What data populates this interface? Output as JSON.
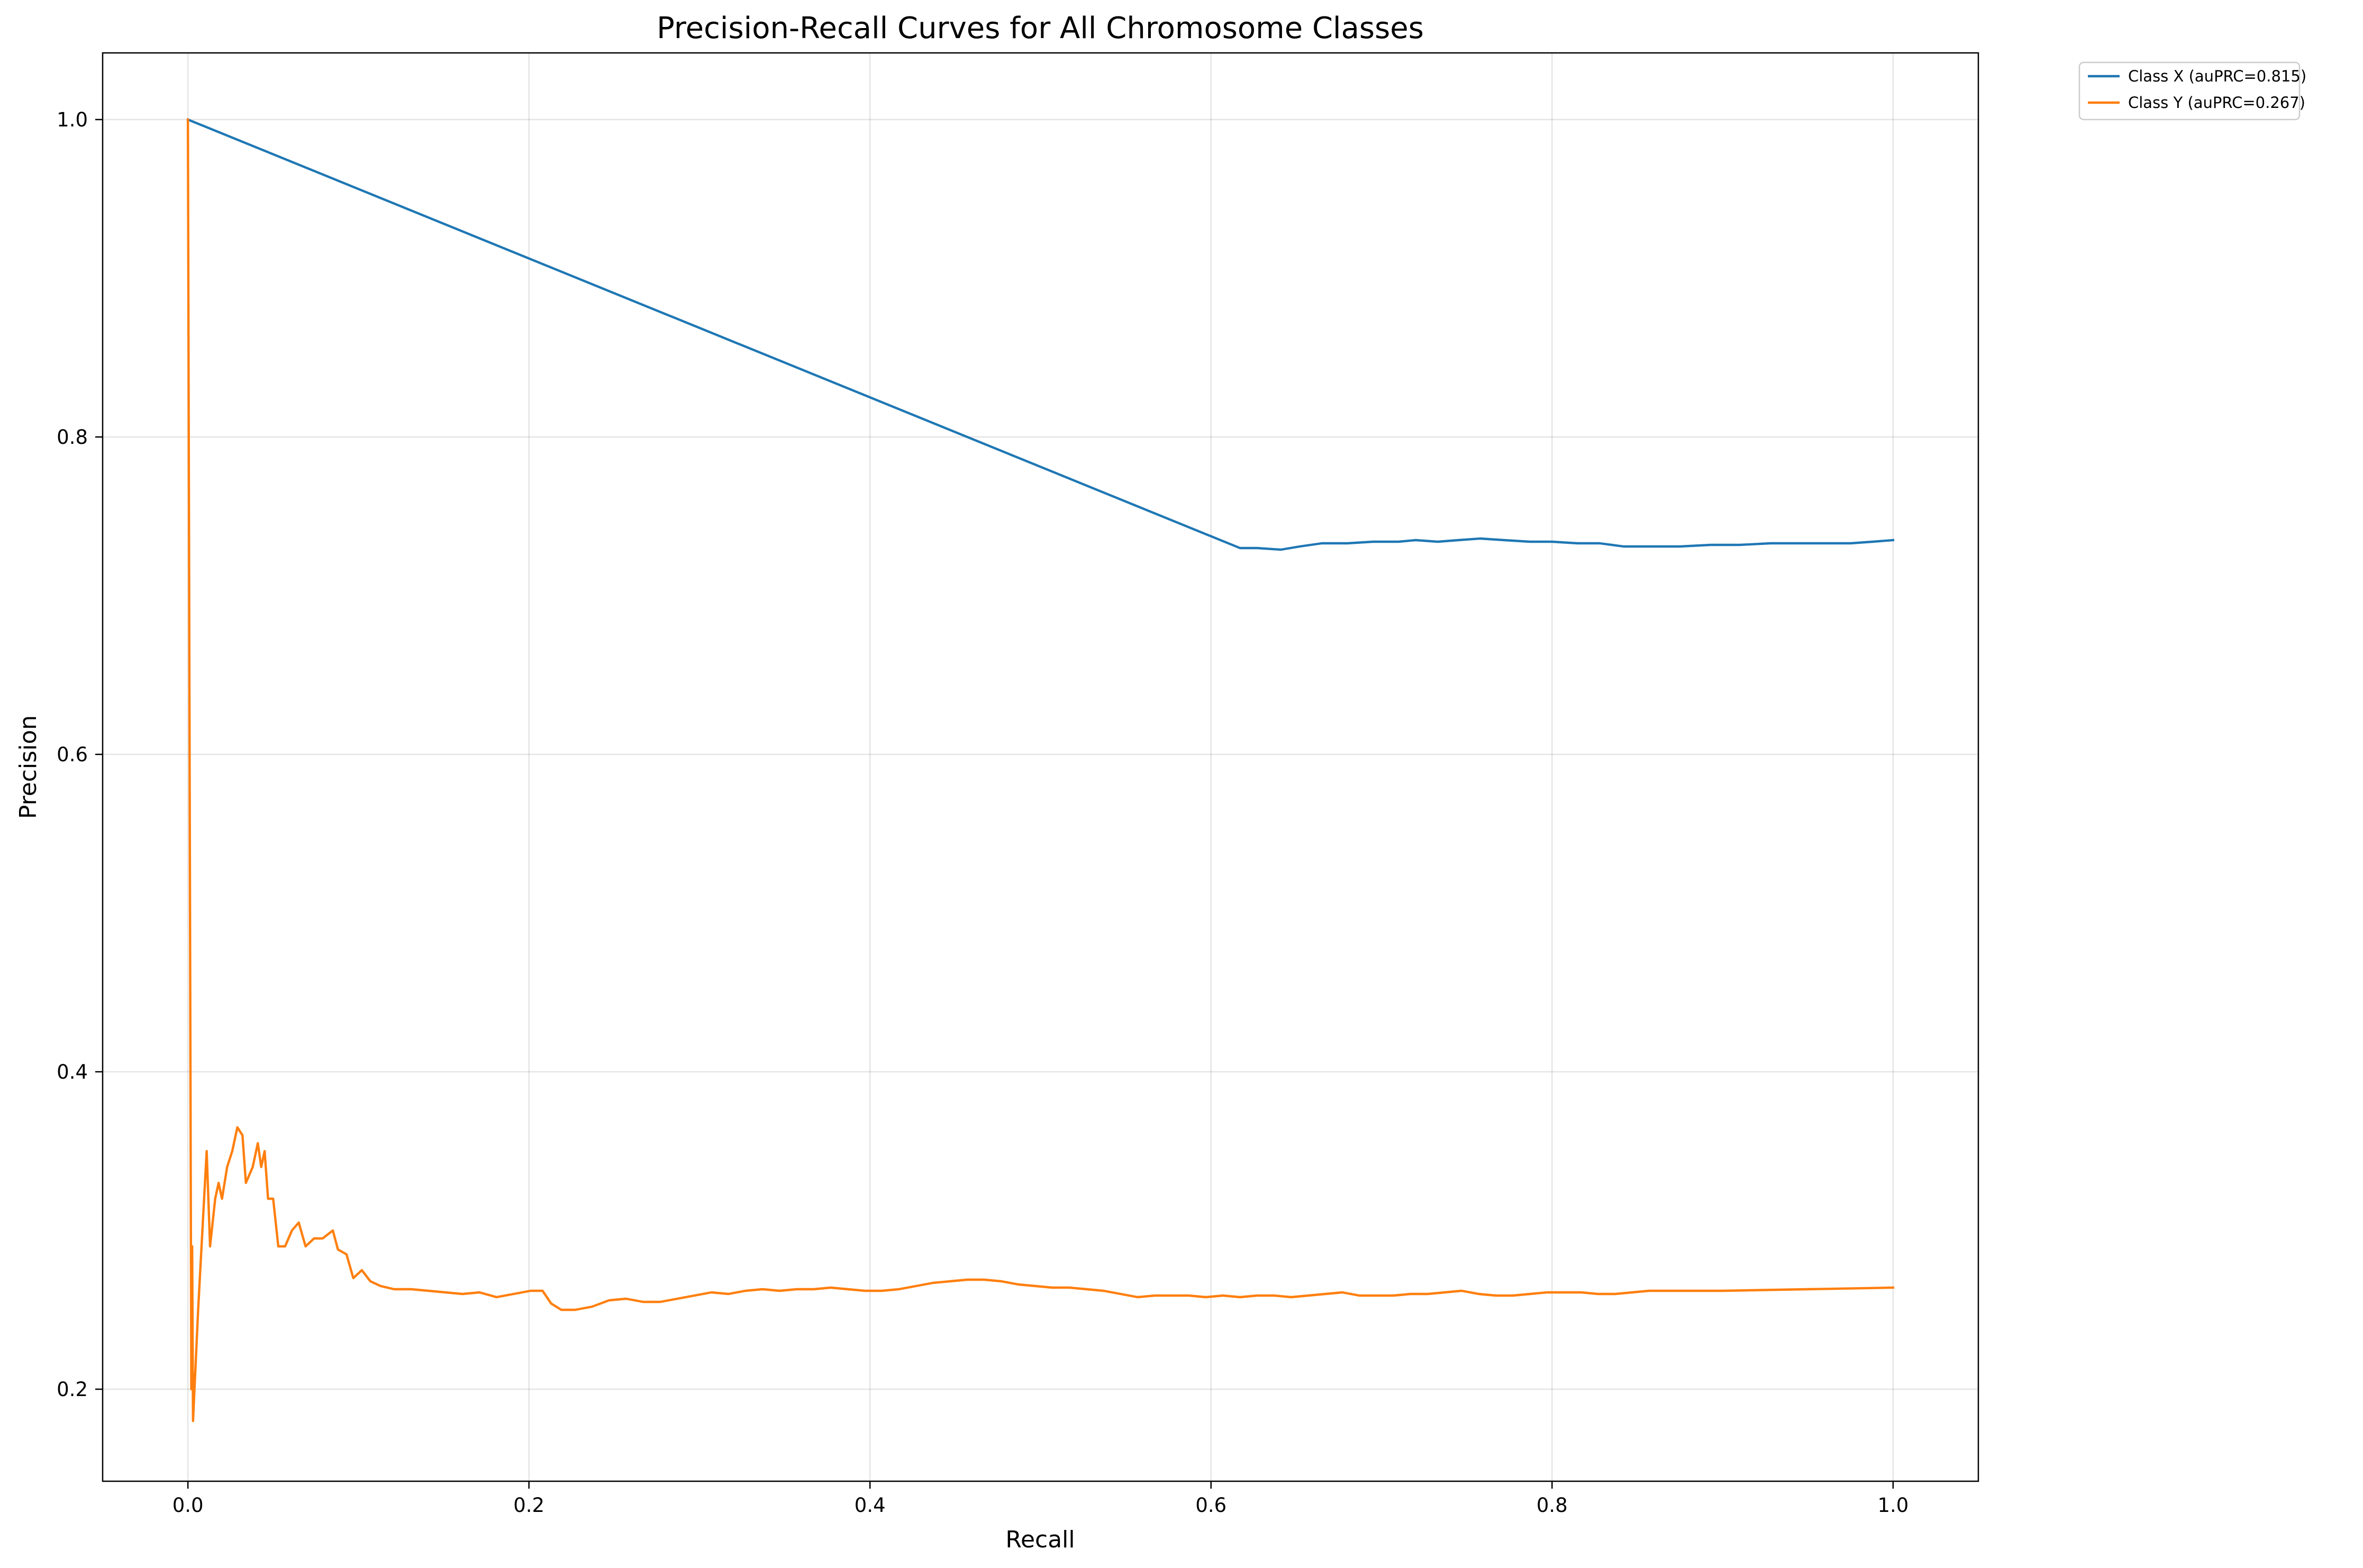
{
  "chart_data": {
    "type": "line",
    "title": "Precision-Recall Curves for All Chromosome Classes",
    "xlabel": "Recall",
    "ylabel": "Precision",
    "xlim": [
      -0.05,
      1.05
    ],
    "ylim": [
      0.142,
      1.042
    ],
    "x_ticks": [
      0.0,
      0.2,
      0.4,
      0.6,
      0.8,
      1.0
    ],
    "x_tick_labels": [
      "0.0",
      "0.2",
      "0.4",
      "0.6",
      "0.8",
      "1.0"
    ],
    "y_ticks": [
      0.2,
      0.4,
      0.6,
      0.8,
      1.0
    ],
    "y_tick_labels": [
      "0.2",
      "0.4",
      "0.6",
      "0.8",
      "1.0"
    ],
    "grid": true,
    "legend_position": "outside-top-right",
    "series": [
      {
        "name": "Class X (auPRC=0.815)",
        "color": "#1f77b4",
        "points": [
          [
            0.0,
            1.0
          ],
          [
            0.617,
            0.73
          ],
          [
            0.627,
            0.73
          ],
          [
            0.641,
            0.729
          ],
          [
            0.652,
            0.731
          ],
          [
            0.665,
            0.733
          ],
          [
            0.68,
            0.733
          ],
          [
            0.695,
            0.734
          ],
          [
            0.71,
            0.734
          ],
          [
            0.72,
            0.735
          ],
          [
            0.733,
            0.734
          ],
          [
            0.745,
            0.735
          ],
          [
            0.758,
            0.736
          ],
          [
            0.772,
            0.735
          ],
          [
            0.787,
            0.734
          ],
          [
            0.8,
            0.734
          ],
          [
            0.815,
            0.733
          ],
          [
            0.828,
            0.733
          ],
          [
            0.842,
            0.731
          ],
          [
            0.858,
            0.731
          ],
          [
            0.875,
            0.731
          ],
          [
            0.893,
            0.732
          ],
          [
            0.91,
            0.732
          ],
          [
            0.928,
            0.733
          ],
          [
            0.946,
            0.733
          ],
          [
            0.962,
            0.733
          ],
          [
            0.975,
            0.733
          ],
          [
            0.988,
            0.734
          ],
          [
            1.0,
            0.735
          ]
        ]
      },
      {
        "name": "Class Y (auPRC=0.267)",
        "color": "#ff7f0e",
        "points": [
          [
            0.0,
            1.0
          ],
          [
            0.001,
            0.6
          ],
          [
            0.002,
            0.2
          ],
          [
            0.0025,
            0.29
          ],
          [
            0.003,
            0.18
          ],
          [
            0.006,
            0.25
          ],
          [
            0.009,
            0.31
          ],
          [
            0.011,
            0.35
          ],
          [
            0.013,
            0.29
          ],
          [
            0.016,
            0.32
          ],
          [
            0.018,
            0.33
          ],
          [
            0.02,
            0.32
          ],
          [
            0.023,
            0.34
          ],
          [
            0.026,
            0.35
          ],
          [
            0.029,
            0.365
          ],
          [
            0.032,
            0.36
          ],
          [
            0.034,
            0.33
          ],
          [
            0.038,
            0.34
          ],
          [
            0.041,
            0.355
          ],
          [
            0.043,
            0.34
          ],
          [
            0.045,
            0.35
          ],
          [
            0.047,
            0.32
          ],
          [
            0.05,
            0.32
          ],
          [
            0.053,
            0.29
          ],
          [
            0.057,
            0.29
          ],
          [
            0.061,
            0.3
          ],
          [
            0.065,
            0.305
          ],
          [
            0.069,
            0.29
          ],
          [
            0.074,
            0.295
          ],
          [
            0.079,
            0.295
          ],
          [
            0.085,
            0.3
          ],
          [
            0.088,
            0.288
          ],
          [
            0.093,
            0.285
          ],
          [
            0.097,
            0.27
          ],
          [
            0.102,
            0.275
          ],
          [
            0.107,
            0.268
          ],
          [
            0.113,
            0.265
          ],
          [
            0.121,
            0.263
          ],
          [
            0.131,
            0.263
          ],
          [
            0.141,
            0.262
          ],
          [
            0.151,
            0.261
          ],
          [
            0.161,
            0.26
          ],
          [
            0.171,
            0.261
          ],
          [
            0.181,
            0.258
          ],
          [
            0.191,
            0.26
          ],
          [
            0.201,
            0.262
          ],
          [
            0.208,
            0.262
          ],
          [
            0.213,
            0.254
          ],
          [
            0.219,
            0.25
          ],
          [
            0.227,
            0.25
          ],
          [
            0.237,
            0.252
          ],
          [
            0.247,
            0.256
          ],
          [
            0.257,
            0.257
          ],
          [
            0.267,
            0.255
          ],
          [
            0.277,
            0.255
          ],
          [
            0.287,
            0.257
          ],
          [
            0.297,
            0.259
          ],
          [
            0.307,
            0.261
          ],
          [
            0.317,
            0.26
          ],
          [
            0.327,
            0.262
          ],
          [
            0.337,
            0.263
          ],
          [
            0.347,
            0.262
          ],
          [
            0.357,
            0.263
          ],
          [
            0.367,
            0.263
          ],
          [
            0.377,
            0.264
          ],
          [
            0.387,
            0.263
          ],
          [
            0.397,
            0.262
          ],
          [
            0.407,
            0.262
          ],
          [
            0.417,
            0.263
          ],
          [
            0.427,
            0.265
          ],
          [
            0.437,
            0.267
          ],
          [
            0.447,
            0.268
          ],
          [
            0.457,
            0.269
          ],
          [
            0.467,
            0.269
          ],
          [
            0.477,
            0.268
          ],
          [
            0.487,
            0.266
          ],
          [
            0.497,
            0.265
          ],
          [
            0.507,
            0.264
          ],
          [
            0.517,
            0.264
          ],
          [
            0.527,
            0.263
          ],
          [
            0.537,
            0.262
          ],
          [
            0.547,
            0.26
          ],
          [
            0.557,
            0.258
          ],
          [
            0.567,
            0.259
          ],
          [
            0.577,
            0.259
          ],
          [
            0.587,
            0.259
          ],
          [
            0.597,
            0.258
          ],
          [
            0.607,
            0.259
          ],
          [
            0.617,
            0.258
          ],
          [
            0.627,
            0.259
          ],
          [
            0.637,
            0.259
          ],
          [
            0.647,
            0.258
          ],
          [
            0.657,
            0.259
          ],
          [
            0.667,
            0.26
          ],
          [
            0.677,
            0.261
          ],
          [
            0.687,
            0.259
          ],
          [
            0.697,
            0.259
          ],
          [
            0.707,
            0.259
          ],
          [
            0.717,
            0.26
          ],
          [
            0.727,
            0.26
          ],
          [
            0.737,
            0.261
          ],
          [
            0.747,
            0.262
          ],
          [
            0.757,
            0.26
          ],
          [
            0.767,
            0.259
          ],
          [
            0.777,
            0.259
          ],
          [
            0.787,
            0.26
          ],
          [
            0.797,
            0.261
          ],
          [
            0.807,
            0.261
          ],
          [
            0.817,
            0.261
          ],
          [
            0.827,
            0.26
          ],
          [
            0.837,
            0.26
          ],
          [
            0.847,
            0.261
          ],
          [
            0.857,
            0.262
          ],
          [
            0.867,
            0.262
          ],
          [
            0.9,
            0.262
          ],
          [
            0.95,
            0.263
          ],
          [
            1.0,
            0.264
          ]
        ]
      }
    ]
  }
}
